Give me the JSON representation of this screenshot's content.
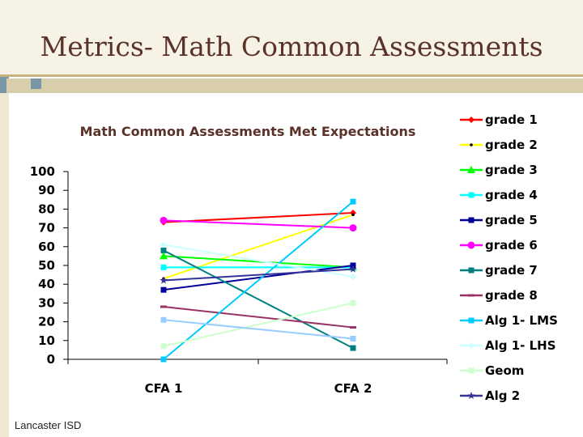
{
  "slide": {
    "title": "Metrics- Math Common Assessments",
    "footer": "Lancaster ISD"
  },
  "colors": {
    "header_background": "#f6f2e6",
    "accent_bar": "#d9ceac",
    "title_text": "#5a3228"
  },
  "chart_data": {
    "type": "line",
    "title": "Math Common Assessments Met Expectations",
    "categories": [
      "CFA 1",
      "CFA 2"
    ],
    "ylim": [
      0,
      100
    ],
    "yticks": [
      0,
      10,
      20,
      30,
      40,
      50,
      60,
      70,
      80,
      90,
      100
    ],
    "grid": false,
    "legend_position": "right",
    "series": [
      {
        "name": "grade 1",
        "values": [
          73,
          78
        ],
        "color": "#ff0000",
        "marker": "diamond"
      },
      {
        "name": "grade 2",
        "values": [
          43,
          77
        ],
        "color": "#ffff00",
        "marker": "dot"
      },
      {
        "name": "grade 3",
        "values": [
          55,
          49
        ],
        "color": "#00ff00",
        "marker": "triangle"
      },
      {
        "name": "grade 4",
        "values": [
          49,
          49
        ],
        "color": "#00ffff",
        "marker": "square"
      },
      {
        "name": "grade 5",
        "values": [
          37,
          50
        ],
        "color": "#000099",
        "marker": "square"
      },
      {
        "name": "grade 6",
        "values": [
          74,
          70
        ],
        "color": "#ff00ff",
        "marker": "circle"
      },
      {
        "name": "grade 7",
        "values": [
          58,
          6
        ],
        "color": "#008080",
        "marker": "square"
      },
      {
        "name": "grade 8",
        "values": [
          28,
          17
        ],
        "color": "#993366",
        "marker": "dash"
      },
      {
        "name": "Alg 1- LMS",
        "values": [
          0,
          84
        ],
        "color": "#00ccff",
        "marker": "square"
      },
      {
        "name": "Alg 1- LHS",
        "values": [
          61,
          44
        ],
        "color": "#ccffff",
        "marker": "diamond"
      },
      {
        "name": "Geom",
        "values": [
          7,
          30
        ],
        "color": "#ccffcc",
        "marker": "square"
      },
      {
        "name": "Alg 2",
        "values": [
          42,
          48
        ],
        "color": "#333399",
        "marker": "star"
      },
      {
        "name": "",
        "values": [
          21,
          11
        ],
        "color": "#99ccff",
        "marker": "square"
      }
    ]
  }
}
